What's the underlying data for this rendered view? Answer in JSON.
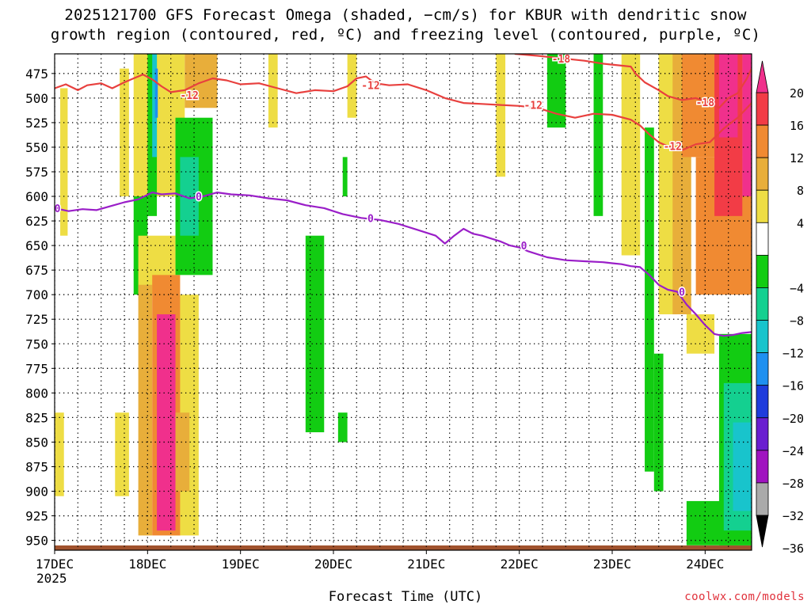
{
  "header": {
    "title_line1": "2025121700 GFS Forecast Omega (shaded, −cm/s) for KBUR with dendritic snow",
    "title_line2": "growth region (contoured, red, ºC) and freezing level (contoured, purple, ºC)"
  },
  "footer": {
    "xlabel": "Forecast Time (UTC)",
    "year": "2025",
    "credit": "coolwx.com/models"
  },
  "chart_data": {
    "type": "heatmap",
    "title": "2025121700 GFS Forecast Omega (shaded, −cm/s) for KBUR with dendritic snow growth region (contoured, red, ºC) and freezing level (contoured, purple, ºC)",
    "xlabel": "Forecast Time (UTC)",
    "ylabel": "",
    "x_ticks": [
      "17DEC",
      "18DEC",
      "19DEC",
      "20DEC",
      "21DEC",
      "22DEC",
      "23DEC",
      "24DEC"
    ],
    "xlim_days": [
      0,
      7.5
    ],
    "y_ticks": [
      475,
      500,
      525,
      550,
      575,
      600,
      625,
      650,
      675,
      700,
      725,
      750,
      775,
      800,
      825,
      850,
      875,
      900,
      925,
      950
    ],
    "ylim_hpa": [
      455,
      960
    ],
    "grid": "dotted",
    "colorbar": {
      "labels": [
        "20",
        "16",
        "12",
        "8",
        "4",
        "−4",
        "−8",
        "−12",
        "−16",
        "−20",
        "−24",
        "−28",
        "−32",
        "−36"
      ],
      "bins": [
        {
          "min": 20,
          "max": 99,
          "color": "#f0308c"
        },
        {
          "min": 16,
          "max": 20,
          "color": "#f23c46"
        },
        {
          "min": 12,
          "max": 16,
          "color": "#f08a32"
        },
        {
          "min": 8,
          "max": 12,
          "color": "#e8ae3a"
        },
        {
          "min": 4,
          "max": 8,
          "color": "#eedd44"
        },
        {
          "min": -4,
          "max": 4,
          "color": "#ffffff"
        },
        {
          "min": -8,
          "max": -4,
          "color": "#12cc12"
        },
        {
          "min": -12,
          "max": -8,
          "color": "#14d090"
        },
        {
          "min": -16,
          "max": -12,
          "color": "#18c4cc"
        },
        {
          "min": -20,
          "max": -16,
          "color": "#1e90f0"
        },
        {
          "min": -24,
          "max": -20,
          "color": "#1e3cdc"
        },
        {
          "min": -28,
          "max": -24,
          "color": "#6a1ed0"
        },
        {
          "min": -32,
          "max": -28,
          "color": "#a014c0"
        },
        {
          "min": -36,
          "max": -32,
          "color": "#aaaaaa"
        },
        {
          "min": -99,
          "max": -36,
          "color": "#000000"
        }
      ]
    },
    "ground_color": "#a0522d",
    "omega_regions": [
      {
        "x": [
          0.06,
          0.14
        ],
        "p": [
          490,
          640
        ],
        "value": 5
      },
      {
        "x": [
          0.0,
          0.1
        ],
        "p": [
          820,
          905
        ],
        "value": 5
      },
      {
        "x": [
          0.65,
          0.8
        ],
        "p": [
          820,
          905
        ],
        "value": 5
      },
      {
        "x": [
          0.7,
          0.8
        ],
        "p": [
          470,
          600
        ],
        "value": 5
      },
      {
        "x": [
          0.85,
          1.4
        ],
        "p": [
          455,
          600
        ],
        "value": 5
      },
      {
        "x": [
          0.85,
          1.0
        ],
        "p": [
          600,
          700
        ],
        "value": -6
      },
      {
        "x": [
          1.0,
          1.1
        ],
        "p": [
          455,
          620
        ],
        "value": -6
      },
      {
        "x": [
          1.05,
          1.1
        ],
        "p": [
          455,
          560
        ],
        "value": -14
      },
      {
        "x": [
          1.08,
          1.11
        ],
        "p": [
          470,
          520
        ],
        "value": -19
      },
      {
        "x": [
          1.3,
          1.7
        ],
        "p": [
          520,
          680
        ],
        "value": -6
      },
      {
        "x": [
          1.35,
          1.55
        ],
        "p": [
          560,
          640
        ],
        "value": -10
      },
      {
        "x": [
          0.9,
          1.3
        ],
        "p": [
          640,
          700
        ],
        "value": 5
      },
      {
        "x": [
          0.9,
          1.05
        ],
        "p": [
          690,
          945
        ],
        "value": 9
      },
      {
        "x": [
          1.25,
          1.55
        ],
        "p": [
          700,
          945
        ],
        "value": 5
      },
      {
        "x": [
          1.05,
          1.35
        ],
        "p": [
          680,
          945
        ],
        "value": 14
      },
      {
        "x": [
          1.1,
          1.3
        ],
        "p": [
          720,
          940
        ],
        "value": 22
      },
      {
        "x": [
          1.3,
          1.45
        ],
        "p": [
          820,
          900
        ],
        "value": 10
      },
      {
        "x": [
          1.4,
          1.75
        ],
        "p": [
          455,
          510
        ],
        "value": 9
      },
      {
        "x": [
          2.3,
          2.4
        ],
        "p": [
          455,
          530
        ],
        "value": 5
      },
      {
        "x": [
          2.7,
          2.9
        ],
        "p": [
          640,
          840
        ],
        "value": -6
      },
      {
        "x": [
          3.05,
          3.15
        ],
        "p": [
          820,
          850
        ],
        "value": -6
      },
      {
        "x": [
          3.1,
          3.15
        ],
        "p": [
          560,
          600
        ],
        "value": -6
      },
      {
        "x": [
          3.15,
          3.25
        ],
        "p": [
          455,
          520
        ],
        "value": 5
      },
      {
        "x": [
          4.75,
          4.85
        ],
        "p": [
          455,
          580
        ],
        "value": 5
      },
      {
        "x": [
          5.3,
          5.5
        ],
        "p": [
          455,
          530
        ],
        "value": -6
      },
      {
        "x": [
          5.8,
          5.9
        ],
        "p": [
          455,
          620
        ],
        "value": -6
      },
      {
        "x": [
          6.1,
          6.3
        ],
        "p": [
          455,
          660
        ],
        "value": 5
      },
      {
        "x": [
          6.35,
          6.45
        ],
        "p": [
          530,
          880
        ],
        "value": -6
      },
      {
        "x": [
          6.45,
          6.55
        ],
        "p": [
          760,
          900
        ],
        "value": -6
      },
      {
        "x": [
          6.5,
          6.7
        ],
        "p": [
          455,
          720
        ],
        "value": 5
      },
      {
        "x": [
          6.65,
          6.85
        ],
        "p": [
          455,
          720
        ],
        "value": 9
      },
      {
        "x": [
          6.8,
          7.1
        ],
        "p": [
          720,
          760
        ],
        "value": 5
      },
      {
        "x": [
          6.8,
          7.5
        ],
        "p": [
          910,
          955
        ],
        "value": -6
      },
      {
        "x": [
          7.15,
          7.5
        ],
        "p": [
          740,
          955
        ],
        "value": -6
      },
      {
        "x": [
          7.2,
          7.5
        ],
        "p": [
          790,
          940
        ],
        "value": -10
      },
      {
        "x": [
          7.3,
          7.5
        ],
        "p": [
          830,
          920
        ],
        "value": -14
      },
      {
        "x": [
          6.75,
          7.5
        ],
        "p": [
          455,
          560
        ],
        "value": 14
      },
      {
        "x": [
          6.9,
          7.5
        ],
        "p": [
          560,
          700
        ],
        "value": 14
      },
      {
        "x": [
          7.1,
          7.4
        ],
        "p": [
          455,
          620
        ],
        "value": 18
      },
      {
        "x": [
          7.15,
          7.35
        ],
        "p": [
          455,
          540
        ],
        "value": 22
      },
      {
        "x": [
          7.4,
          7.5
        ],
        "p": [
          455,
          600
        ],
        "value": 22
      }
    ],
    "series": [
      {
        "color": "#e8403e",
        "x": [
          0,
          0.12,
          0.25,
          0.35,
          0.5,
          0.62,
          0.75,
          0.85,
          0.95,
          1.05,
          1.15,
          1.25,
          1.4,
          1.55,
          1.7,
          1.85,
          2.0,
          2.2,
          2.4,
          2.6,
          2.8,
          3.0,
          3.15,
          3.25,
          3.35,
          3.45,
          3.6,
          3.8,
          4.0,
          4.2,
          4.4,
          4.6,
          4.8,
          5.0,
          5.2,
          5.4,
          5.6,
          5.8,
          6.0,
          6.2,
          6.3,
          6.4,
          6.5,
          6.6,
          6.75,
          6.9,
          7.05,
          7.2,
          7.35,
          7.5
        ],
        "y": [
          490,
          486,
          492,
          487,
          485,
          490,
          484,
          480,
          476,
          481,
          488,
          494,
          492,
          485,
          480,
          482,
          486,
          485,
          490,
          495,
          492,
          493,
          488,
          480,
          478,
          485,
          487,
          486,
          492,
          500,
          505,
          506,
          507,
          508,
          510,
          516,
          520,
          516,
          517,
          522,
          528,
          537,
          545,
          549,
          553,
          547,
          545,
          531,
          520,
          505
        ],
        "labels": [
          {
            "x": 1.45,
            "p": 497,
            "text": "-12"
          },
          {
            "x": 3.4,
            "p": 487,
            "text": "-12"
          },
          {
            "x": 5.15,
            "p": 507,
            "text": "-12"
          },
          {
            "x": 6.65,
            "p": 549,
            "text": "-12"
          }
        ]
      },
      {
        "color": "#e8403e",
        "x": [
          4.95,
          5.2,
          5.5,
          5.7,
          5.9,
          6.1,
          6.2,
          6.25,
          6.35,
          6.5,
          6.6,
          6.75,
          6.9,
          7.05,
          7.15,
          7.25,
          7.35,
          7.45,
          7.5
        ],
        "y": [
          455,
          457,
          460,
          462,
          465,
          467,
          468,
          475,
          484,
          492,
          498,
          502,
          500,
          505,
          510,
          500,
          495,
          480,
          470
        ],
        "labels": [
          {
            "x": 5.45,
            "p": 460,
            "text": "-18"
          },
          {
            "x": 7.0,
            "p": 504,
            "text": "-18"
          }
        ]
      },
      {
        "color": "#9a1ec8",
        "x": [
          0,
          0.15,
          0.3,
          0.45,
          0.6,
          0.75,
          0.9,
          1.05,
          1.15,
          1.3,
          1.45,
          1.6,
          1.75,
          1.9,
          2.1,
          2.3,
          2.5,
          2.7,
          2.9,
          3.1,
          3.3,
          3.5,
          3.7,
          3.9,
          4.1,
          4.2,
          4.3,
          4.4,
          4.5,
          4.6,
          4.7,
          4.8,
          4.9,
          5.0,
          5.1,
          5.3,
          5.5,
          5.7,
          5.9,
          6.0,
          6.1,
          6.2,
          6.3,
          6.4,
          6.5,
          6.6,
          6.7,
          6.8,
          6.9,
          7.0,
          7.1,
          7.2,
          7.3,
          7.4,
          7.5
        ],
        "y": [
          612,
          615,
          613,
          614,
          610,
          606,
          603,
          596,
          598,
          597,
          602,
          600,
          596,
          598,
          599,
          602,
          604,
          609,
          612,
          618,
          622,
          624,
          628,
          634,
          640,
          648,
          640,
          633,
          638,
          640,
          643,
          646,
          650,
          652,
          656,
          662,
          665,
          666,
          667,
          668,
          669,
          671,
          672,
          680,
          690,
          695,
          697,
          710,
          720,
          731,
          740,
          742,
          741,
          739,
          738
        ],
        "labels": [
          {
            "x": 0.03,
            "p": 612,
            "text": "0"
          },
          {
            "x": 1.55,
            "p": 600,
            "text": "0"
          },
          {
            "x": 3.4,
            "p": 622,
            "text": "0"
          },
          {
            "x": 5.05,
            "p": 650,
            "text": "0"
          },
          {
            "x": 6.75,
            "p": 697,
            "text": "0"
          }
        ]
      }
    ]
  }
}
